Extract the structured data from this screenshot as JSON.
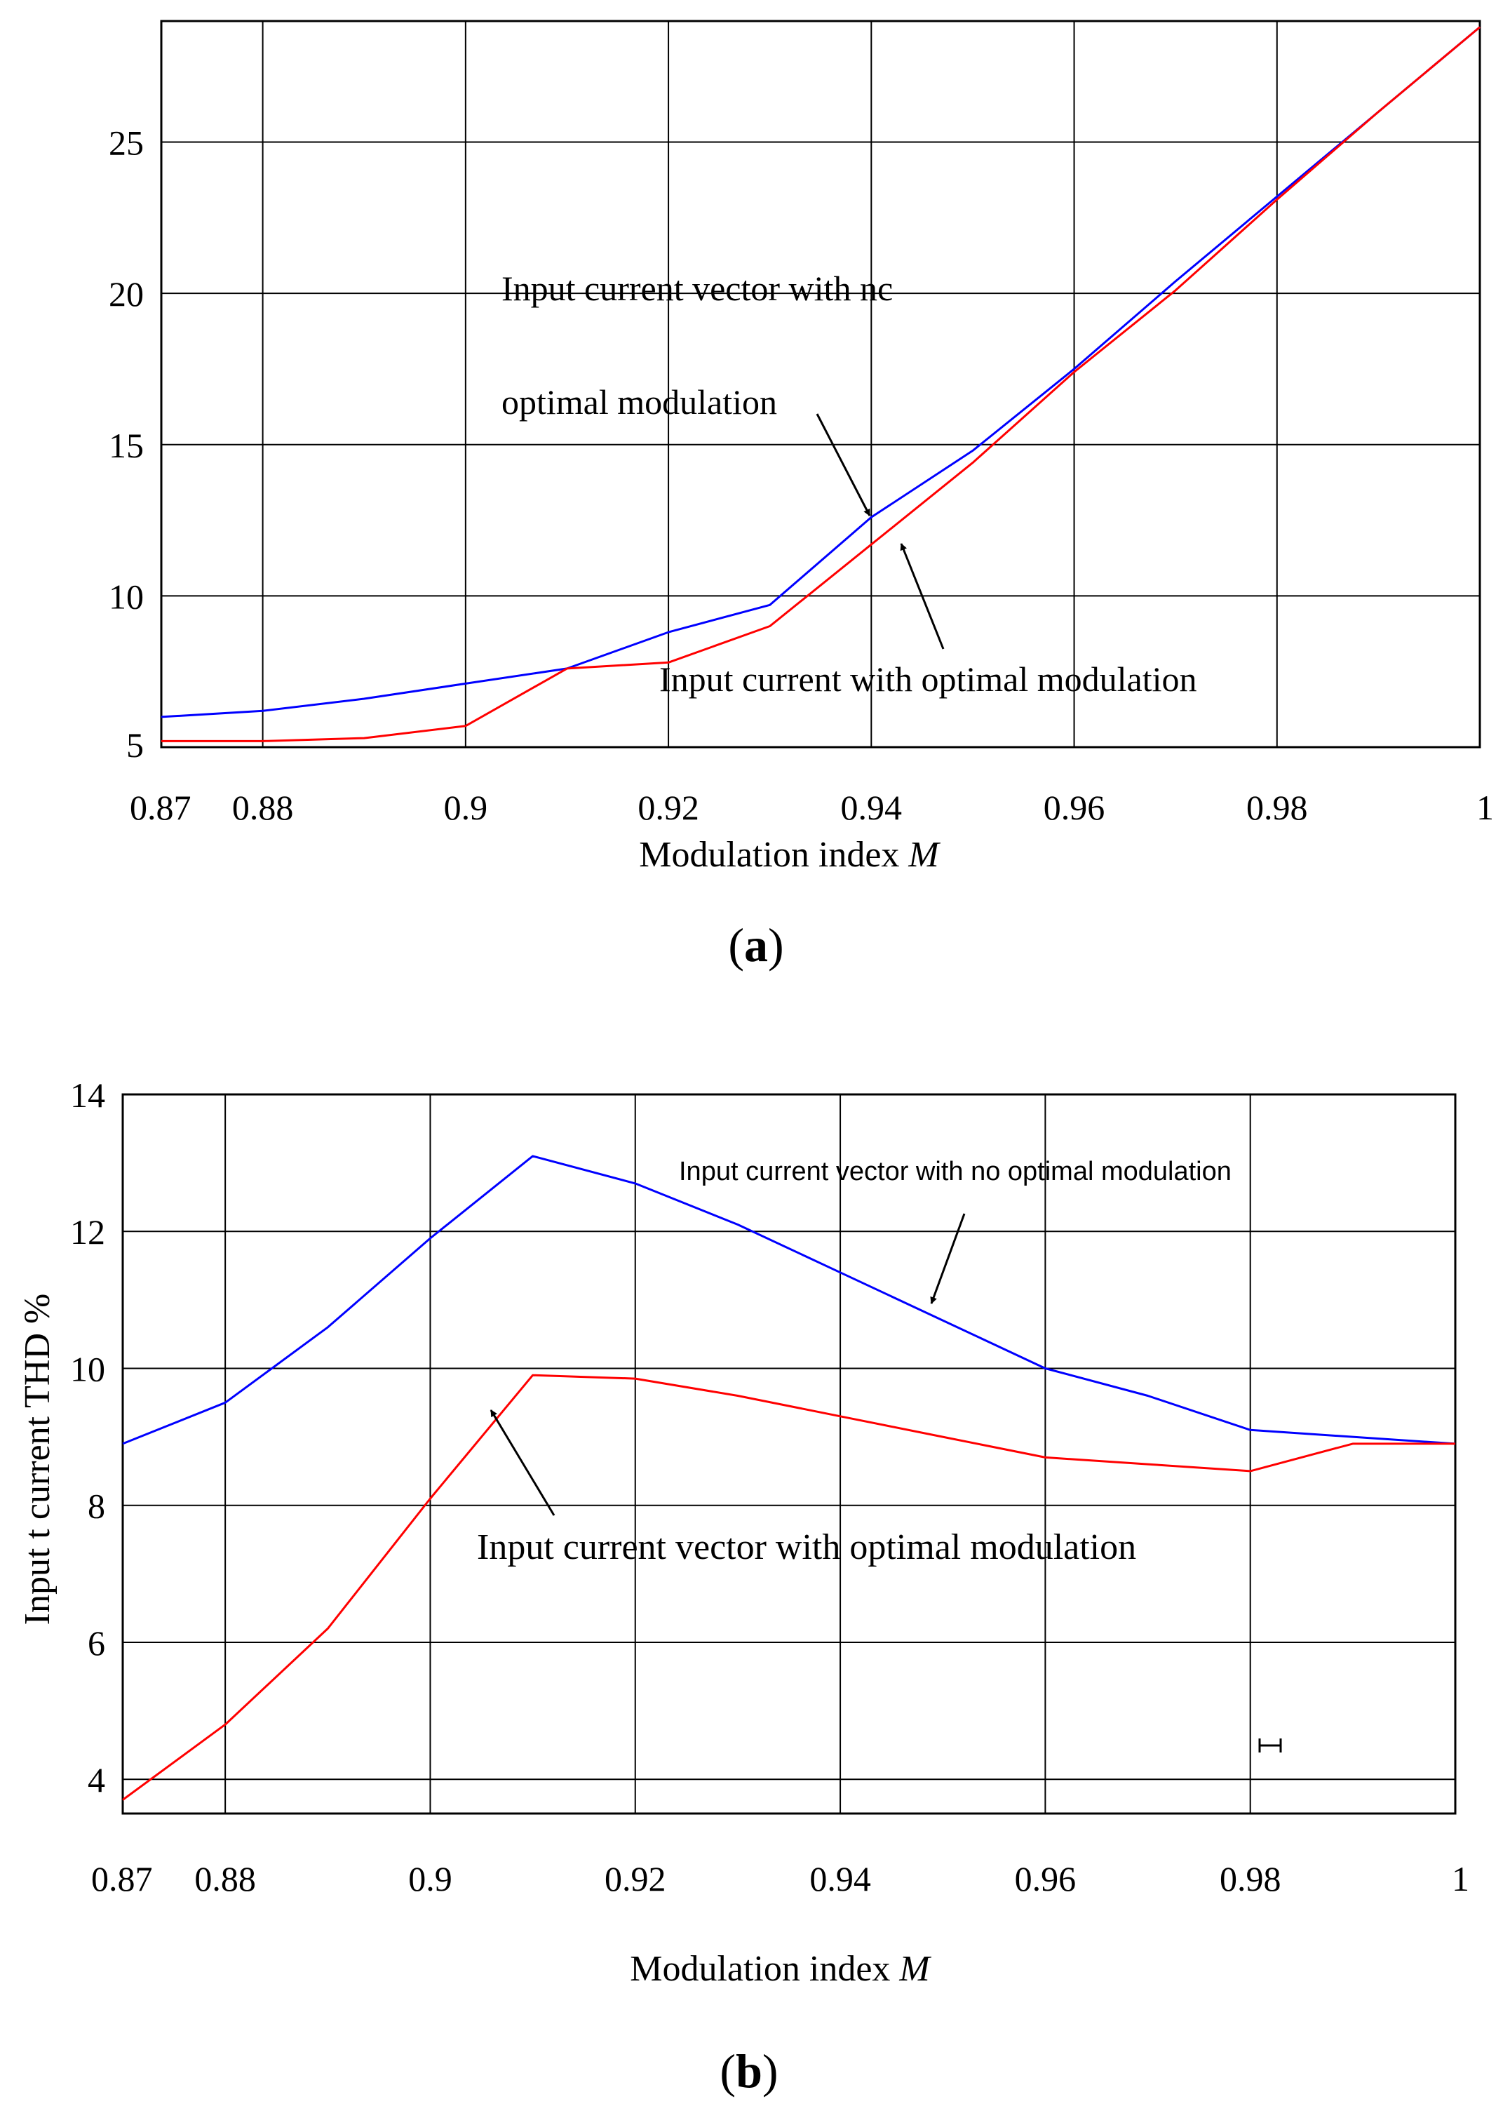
{
  "colors": {
    "series_blue": "#0000ff",
    "series_red": "#ff0000",
    "grid": "#000000",
    "text": "#000000",
    "background": "#ffffff"
  },
  "icons": {
    "arrow": "arrow-icon",
    "cursor": "i-beam-cursor-icon"
  },
  "chart_data": [
    {
      "id": "a",
      "type": "line",
      "caption": "(a)",
      "caption_letter": "a",
      "xlabel_text": "Modulation index ",
      "xlabel_symbol": "M",
      "ylabel": "",
      "xlim": [
        0.87,
        1.0
      ],
      "ylim": [
        5,
        29
      ],
      "grid": true,
      "x_ticks": [
        {
          "value": 0.87,
          "label": "0.87"
        },
        {
          "value": 0.88,
          "label": "0.88"
        },
        {
          "value": 0.9,
          "label": "0.9"
        },
        {
          "value": 0.92,
          "label": "0.92"
        },
        {
          "value": 0.94,
          "label": "0.94"
        },
        {
          "value": 0.96,
          "label": "0.96"
        },
        {
          "value": 0.98,
          "label": "0.98"
        },
        {
          "value": 1.0,
          "label": "1"
        }
      ],
      "y_ticks": [
        {
          "value": 5,
          "label": "5"
        },
        {
          "value": 10,
          "label": "10"
        },
        {
          "value": 15,
          "label": "15"
        },
        {
          "value": 20,
          "label": "20"
        },
        {
          "value": 25,
          "label": "25"
        }
      ],
      "series": [
        {
          "name": "Input current vector with no optimal modulation",
          "color": "#0000ff",
          "x": [
            0.87,
            0.88,
            0.89,
            0.9,
            0.91,
            0.92,
            0.93,
            0.94,
            0.95,
            0.96,
            0.97,
            0.98,
            0.99,
            1.0
          ],
          "values": [
            6.0,
            6.2,
            6.6,
            7.1,
            7.6,
            8.8,
            9.7,
            12.6,
            14.8,
            17.5,
            20.4,
            23.2,
            26.0,
            28.8
          ]
        },
        {
          "name": "Input current with optimal modulation",
          "color": "#ff0000",
          "x": [
            0.87,
            0.88,
            0.89,
            0.9,
            0.91,
            0.92,
            0.93,
            0.94,
            0.95,
            0.96,
            0.97,
            0.98,
            0.99,
            1.0
          ],
          "values": [
            5.2,
            5.2,
            5.3,
            5.7,
            7.6,
            7.8,
            9.0,
            11.7,
            14.4,
            17.4,
            20.1,
            23.1,
            26.0,
            28.8
          ]
        }
      ],
      "annotations": [
        {
          "key": "blue_line1",
          "text": "Input  current  vector  with  nc"
        },
        {
          "key": "blue_line2",
          "text": "optimal modulation"
        },
        {
          "key": "red",
          "text": "Input current with optimal modulation"
        }
      ]
    },
    {
      "id": "b",
      "type": "line",
      "caption": "(b)",
      "caption_letter": "b",
      "xlabel_text": "Modulation index ",
      "xlabel_symbol": "M",
      "ylabel": "Input t current THD %",
      "xlim": [
        0.87,
        1.0
      ],
      "ylim": [
        3.5,
        14
      ],
      "grid": true,
      "x_ticks": [
        {
          "value": 0.87,
          "label": "0.87"
        },
        {
          "value": 0.88,
          "label": "0.88"
        },
        {
          "value": 0.9,
          "label": "0.9"
        },
        {
          "value": 0.92,
          "label": "0.92"
        },
        {
          "value": 0.94,
          "label": "0.94"
        },
        {
          "value": 0.96,
          "label": "0.96"
        },
        {
          "value": 0.98,
          "label": "0.98"
        },
        {
          "value": 1.0,
          "label": "1"
        }
      ],
      "y_ticks": [
        {
          "value": 4,
          "label": "4"
        },
        {
          "value": 6,
          "label": "6"
        },
        {
          "value": 8,
          "label": "8"
        },
        {
          "value": 10,
          "label": "10"
        },
        {
          "value": 12,
          "label": "12"
        },
        {
          "value": 14,
          "label": "14"
        }
      ],
      "series": [
        {
          "name": "Input current vector with no optimal modulation",
          "color": "#0000ff",
          "x": [
            0.87,
            0.88,
            0.89,
            0.9,
            0.91,
            0.92,
            0.93,
            0.94,
            0.95,
            0.96,
            0.97,
            0.98,
            0.99,
            1.0
          ],
          "values": [
            8.9,
            9.5,
            10.6,
            11.9,
            13.1,
            12.7,
            12.1,
            11.4,
            10.7,
            10.0,
            9.6,
            9.1,
            9.0,
            8.9
          ]
        },
        {
          "name": "Input current vector with optimal modulation",
          "color": "#ff0000",
          "x": [
            0.87,
            0.88,
            0.89,
            0.9,
            0.91,
            0.92,
            0.93,
            0.94,
            0.95,
            0.96,
            0.97,
            0.98,
            0.99,
            1.0
          ],
          "values": [
            3.7,
            4.8,
            6.2,
            8.1,
            9.9,
            9.85,
            9.6,
            9.3,
            9.0,
            8.7,
            8.6,
            8.5,
            8.9,
            8.9
          ]
        }
      ],
      "annotations": [
        {
          "key": "blue",
          "text": "Input current vector with no optimal modulation"
        },
        {
          "key": "red",
          "text": "Input current vector with optimal modulation"
        }
      ]
    }
  ]
}
